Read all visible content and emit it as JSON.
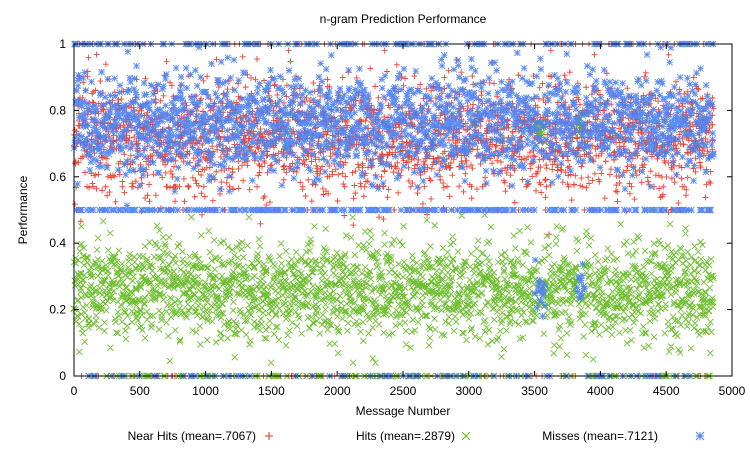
{
  "chart_data": {
    "type": "scatter",
    "title": "n-gram Prediction Performance",
    "xlabel": "Message Number",
    "ylabel": "Performance",
    "xlim": [
      0,
      5000
    ],
    "ylim": [
      0,
      1
    ],
    "x_ticks": [
      "0",
      "500",
      "1000",
      "1500",
      "2000",
      "2500",
      "3000",
      "3500",
      "4000",
      "4500",
      "5000"
    ],
    "y_ticks": [
      "0",
      "0.2",
      "0.4",
      "0.6",
      "0.8",
      "1"
    ],
    "legend_position": "bottom",
    "n_messages": 4860,
    "series": [
      {
        "name": "Near Hits (mean=.7067)",
        "marker": "plus",
        "color": "#e8321e",
        "mean": 0.7067,
        "typical_band": [
          0.6,
          0.9
        ],
        "points_sample": [
          [
            100,
            0.74
          ],
          [
            400,
            0.71
          ],
          [
            800,
            0.69
          ],
          [
            1200,
            0.75
          ],
          [
            1500,
            0.7
          ],
          [
            1800,
            0.72
          ],
          [
            2200,
            0.68
          ],
          [
            2600,
            0.74
          ],
          [
            3000,
            0.7
          ],
          [
            3500,
            0.57
          ],
          [
            3800,
            0.72
          ],
          [
            4200,
            0.74
          ],
          [
            4600,
            0.7
          ]
        ]
      },
      {
        "name": "Hits (mean=.2879)",
        "marker": "x",
        "color": "#5fb81b",
        "mean": 0.2879,
        "typical_band": [
          0.1,
          0.45
        ],
        "points_sample": [
          [
            100,
            0.24
          ],
          [
            500,
            0.3
          ],
          [
            900,
            0.27
          ],
          [
            1300,
            0.28
          ],
          [
            1700,
            0.26
          ],
          [
            2100,
            0.3
          ],
          [
            2500,
            0.25
          ],
          [
            2900,
            0.29
          ],
          [
            3300,
            0.27
          ],
          [
            3550,
            0.75
          ],
          [
            3850,
            0.74
          ],
          [
            4300,
            0.26
          ],
          [
            4700,
            0.25
          ]
        ]
      },
      {
        "name": "Misses (mean=.7121)",
        "marker": "star",
        "color": "#4a7ff0",
        "mean": 0.7121,
        "typical_band": [
          0.6,
          0.9
        ],
        "points_sample": [
          [
            100,
            0.76
          ],
          [
            400,
            0.5
          ],
          [
            800,
            0.72
          ],
          [
            1200,
            0.78
          ],
          [
            1600,
            0.5
          ],
          [
            2000,
            0.7
          ],
          [
            2500,
            0.5
          ],
          [
            2800,
            0.73
          ],
          [
            3000,
            1.0
          ],
          [
            3550,
            0.28
          ],
          [
            3850,
            0.26
          ],
          [
            4200,
            0.5
          ],
          [
            4700,
            0.74
          ]
        ]
      }
    ]
  }
}
